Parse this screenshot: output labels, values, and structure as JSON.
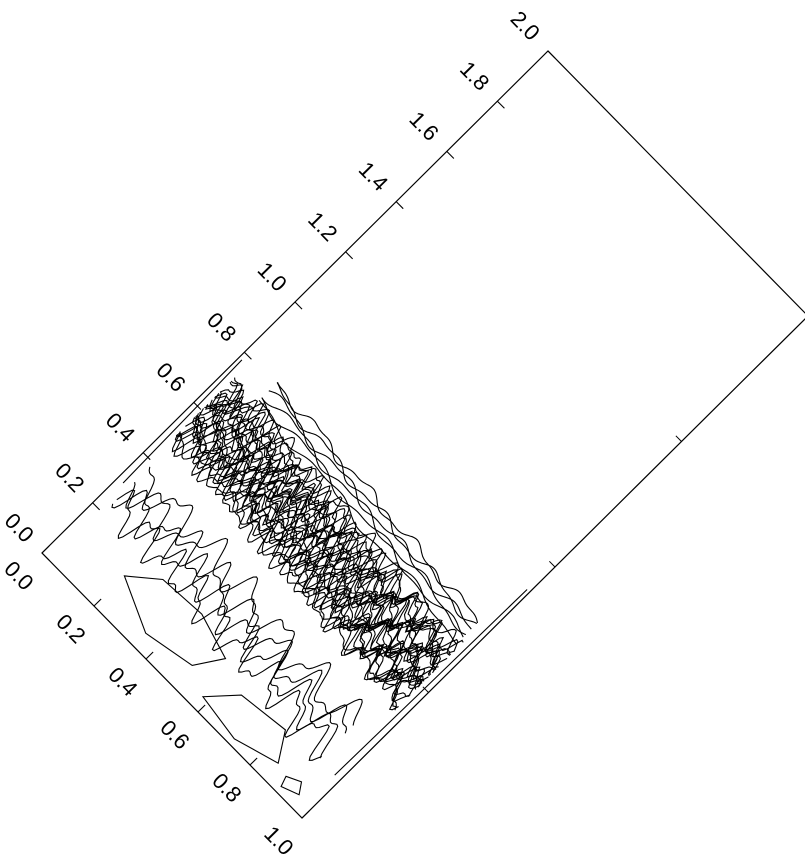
{
  "chart_data": {
    "type": "contour",
    "title": "",
    "xlabel": "",
    "ylabel": "",
    "orientation": "rotated",
    "long_axis": {
      "range": [
        0.0,
        2.0
      ],
      "tick_labels": [
        "0.0",
        "0.2",
        "0.4",
        "0.6",
        "0.8",
        "1.0",
        "1.2",
        "1.4",
        "1.6",
        "1.8",
        "2.0"
      ]
    },
    "short_axis": {
      "range": [
        0.0,
        1.0
      ],
      "tick_labels": [
        "0.0",
        "0.2",
        "0.4",
        "0.6",
        "0.8",
        "1.0"
      ]
    },
    "grid": false,
    "legend": "none",
    "line_color": "#000000",
    "background_color": "#ffffff"
  }
}
